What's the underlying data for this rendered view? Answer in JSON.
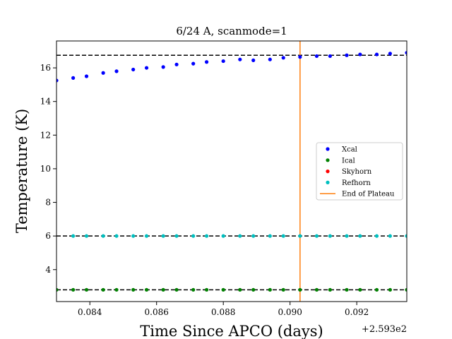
{
  "chart_data": {
    "type": "scatter",
    "title": "6/24 A, scanmode=1",
    "xlabel": "Time Since APCO (days)",
    "ylabel": "Temperature (K)",
    "x_offset_label": "+2.593e2",
    "xlim": [
      259.383,
      259.3935
    ],
    "ylim": [
      2.1,
      17.6
    ],
    "x_ticks": [
      259.384,
      259.386,
      259.388,
      259.39,
      259.392
    ],
    "x_tick_labels": [
      "0.084",
      "0.086",
      "0.088",
      "0.090",
      "0.092"
    ],
    "y_ticks": [
      4,
      6,
      8,
      10,
      12,
      14,
      16
    ],
    "y_tick_labels": [
      "4",
      "6",
      "8",
      "10",
      "12",
      "14",
      "16"
    ],
    "grid": false,
    "legend_position": "center-right",
    "x": [
      259.383,
      259.3835,
      259.3839,
      259.3844,
      259.3848,
      259.3853,
      259.3857,
      259.3862,
      259.3866,
      259.3871,
      259.3875,
      259.388,
      259.3885,
      259.3889,
      259.3894,
      259.3898,
      259.3903,
      259.3908,
      259.3912,
      259.3917,
      259.3921,
      259.3926,
      259.393,
      259.3935
    ],
    "series": [
      {
        "name": "Xcal",
        "color": "#0000ff",
        "values": [
          15.25,
          15.4,
          15.5,
          15.7,
          15.8,
          15.9,
          16.0,
          16.05,
          16.2,
          16.25,
          16.35,
          16.4,
          16.5,
          16.45,
          16.5,
          16.6,
          16.65,
          16.7,
          16.7,
          16.75,
          16.8,
          16.8,
          16.85,
          16.9
        ]
      },
      {
        "name": "Ical",
        "color": "#008000",
        "values": [
          2.8,
          2.8,
          2.8,
          2.8,
          2.8,
          2.8,
          2.8,
          2.8,
          2.8,
          2.8,
          2.8,
          2.8,
          2.8,
          2.8,
          2.8,
          2.8,
          2.8,
          2.8,
          2.8,
          2.8,
          2.8,
          2.8,
          2.8,
          2.8
        ]
      },
      {
        "name": "Skyhorn",
        "color": "#ff0000",
        "values": []
      },
      {
        "name": "Refhorn",
        "color": "#00bfbf",
        "values": [
          null,
          6.0,
          6.0,
          6.0,
          6.0,
          6.0,
          6.0,
          6.0,
          6.0,
          6.0,
          6.0,
          6.0,
          6.0,
          6.0,
          6.0,
          6.0,
          6.0,
          6.0,
          6.0,
          6.0,
          6.0,
          6.0,
          6.0,
          6.0
        ]
      }
    ],
    "hlines": [
      16.75,
      6.0,
      2.8
    ],
    "vline": {
      "name": "End of Plateau",
      "x": 259.3903,
      "color": "#ff7f0e"
    }
  }
}
